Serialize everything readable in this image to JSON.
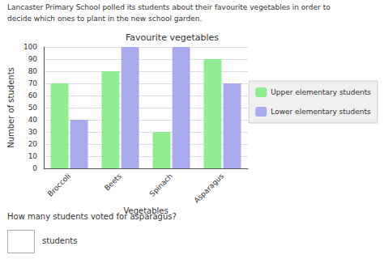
{
  "chart_data": {
    "type": "bar",
    "title": "Favourite vegetables",
    "annotations": [
      "Lancaster Primary School polled its students about their favourite vegetables in order to",
      "decide which ones to plant in the new school garden.",
      "How many students voted for asparagus?",
      "students"
    ],
    "xlabel": "Vegetables",
    "ylabel": "Number of students",
    "categories": [
      "Broccoli",
      "Beets",
      "Spinach",
      "Asparagus"
    ],
    "series": [
      {
        "name": "Upper elementary students",
        "color": "#90EE90",
        "values": [
          70,
          80,
          30,
          90
        ]
      },
      {
        "name": "Lower elementary students",
        "color": "#AAAAEE",
        "values": [
          40,
          100,
          100,
          70
        ]
      }
    ],
    "ylim": [
      0,
      100
    ],
    "yticks": [
      0,
      10,
      20,
      30,
      40,
      50,
      60,
      70,
      80,
      90,
      100
    ],
    "grid": true,
    "legend": "right"
  }
}
